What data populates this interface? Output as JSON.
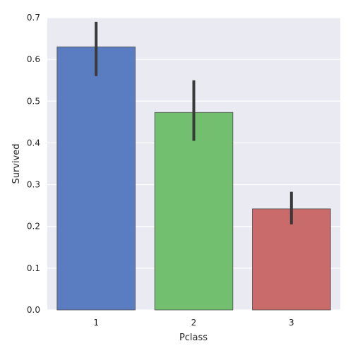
{
  "chart_data": {
    "type": "bar",
    "title": "",
    "xlabel": "Pclass",
    "ylabel": "Survived",
    "categories": [
      "1",
      "2",
      "3"
    ],
    "values": [
      0.63,
      0.473,
      0.242
    ],
    "error_bars": [
      {
        "low": 0.56,
        "high": 0.69
      },
      {
        "low": 0.405,
        "high": 0.55
      },
      {
        "low": 0.205,
        "high": 0.283
      }
    ],
    "ylim": [
      0.0,
      0.7
    ],
    "yticks": [
      "0.0",
      "0.1",
      "0.2",
      "0.3",
      "0.4",
      "0.5",
      "0.6",
      "0.7"
    ],
    "grid": true,
    "legend": "none",
    "colors": [
      "#5a7dc1",
      "#72c06f",
      "#c86b6a"
    ],
    "error_bar_color": "#3a3a3a",
    "plot_background": "#eaeaf2"
  }
}
